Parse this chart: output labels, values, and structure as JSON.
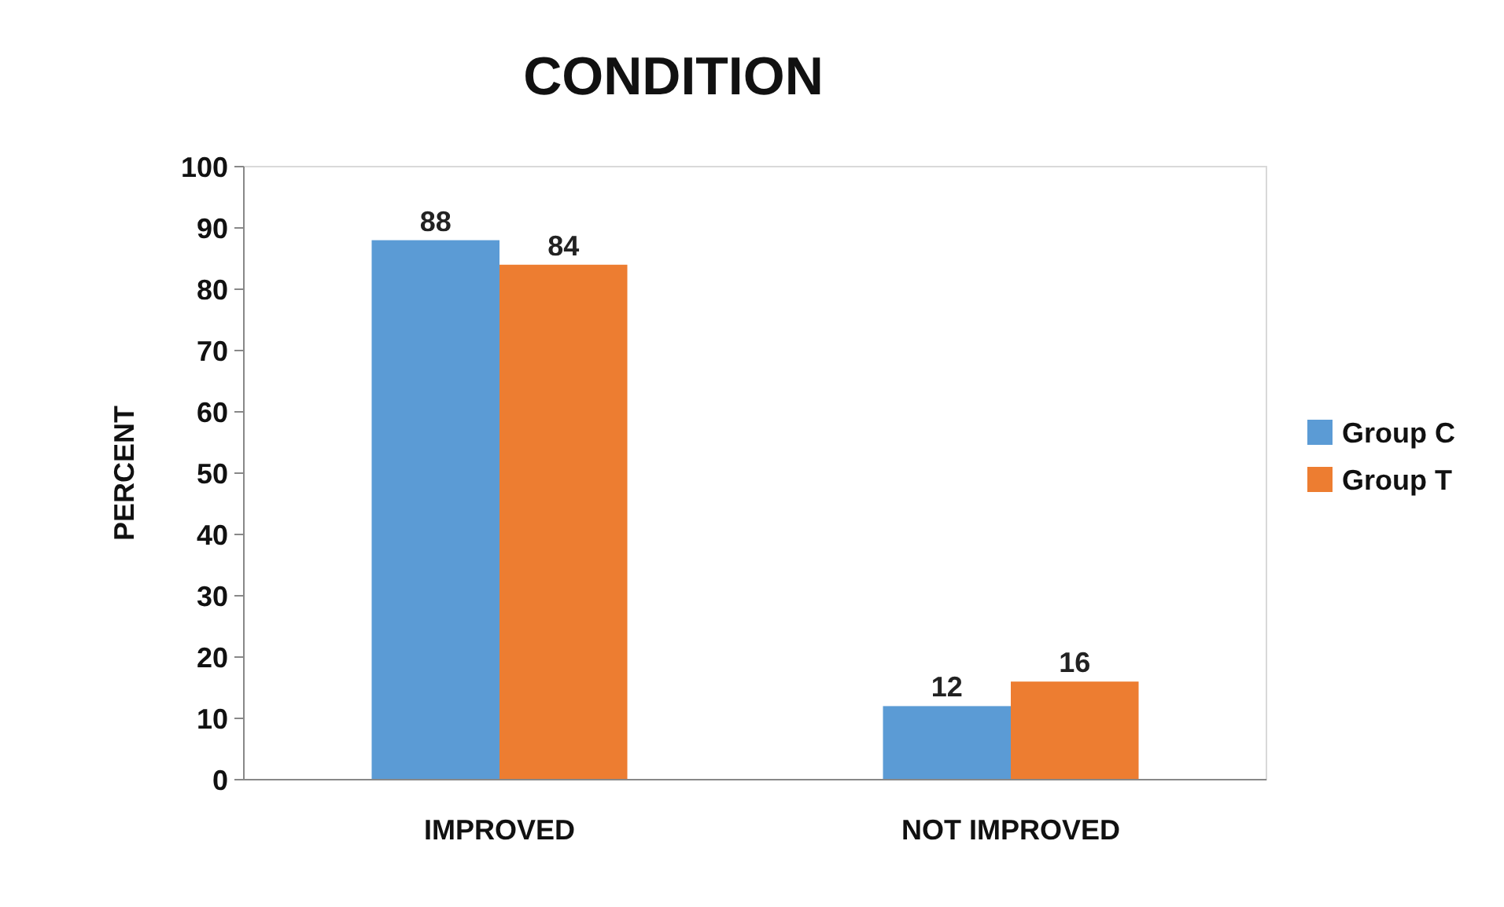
{
  "chart_data": {
    "type": "bar",
    "title": "CONDITION",
    "ylabel": "PERCENT",
    "categories": [
      "IMPROVED",
      "NOT IMPROVED"
    ],
    "series": [
      {
        "name": "Group C",
        "color": "#5b9bd5",
        "values": [
          88,
          12
        ]
      },
      {
        "name": "Group T",
        "color": "#ed7d31",
        "values": [
          84,
          16
        ]
      }
    ],
    "ylim": [
      0,
      100
    ],
    "yticks": [
      0,
      10,
      20,
      30,
      40,
      50,
      60,
      70,
      80,
      90,
      100
    ],
    "grid": false,
    "legend": "right",
    "data_labels": true
  }
}
